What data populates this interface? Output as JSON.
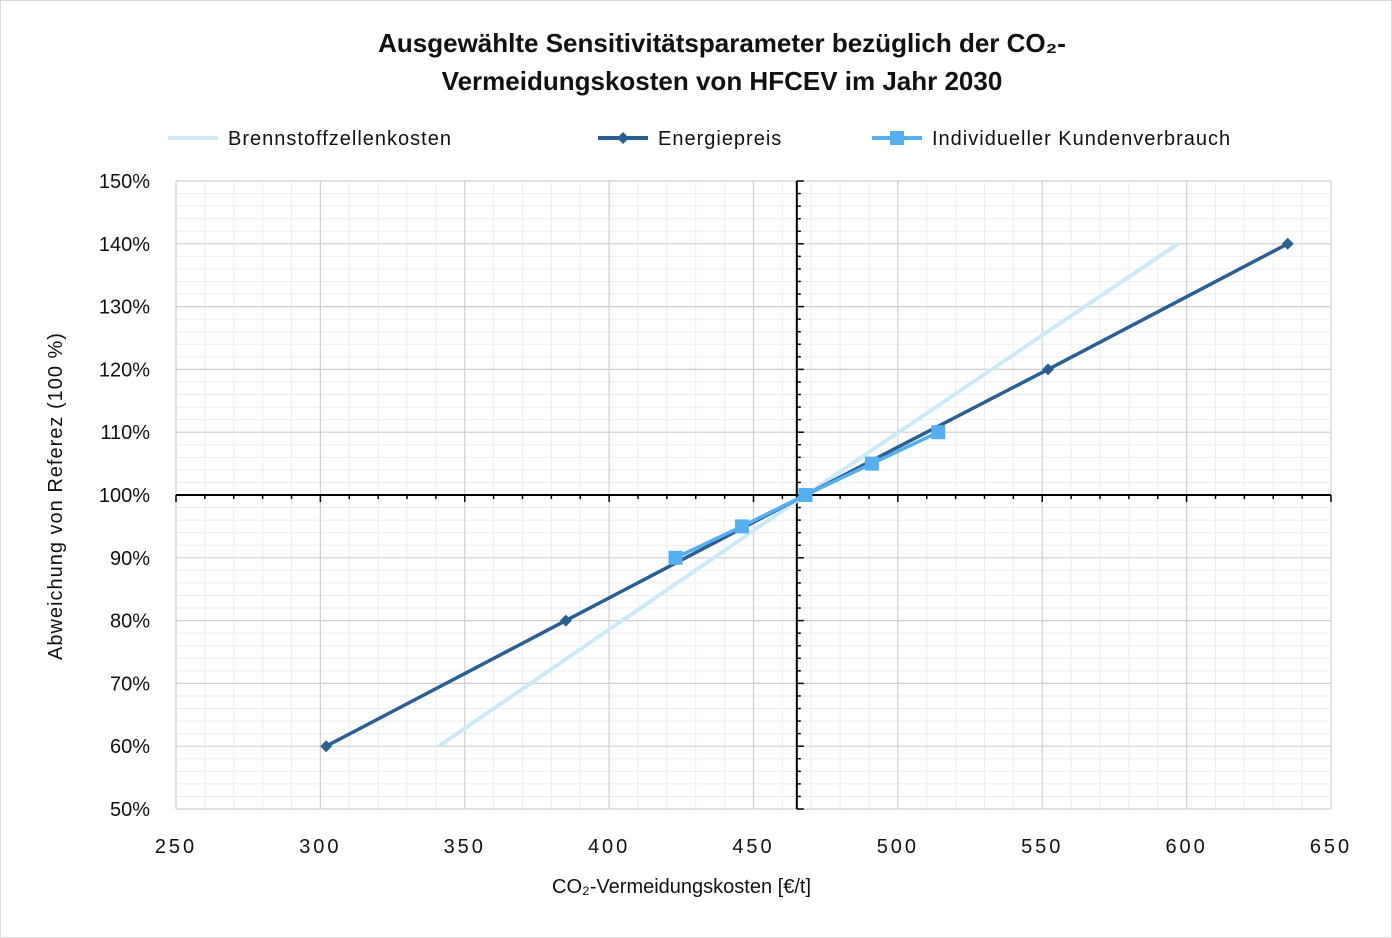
{
  "chart_data": {
    "type": "line",
    "title_line1": "Ausgewählte Sensitivitätsparameter bezüglich der CO₂-",
    "title_line2": "Vermeidungskosten von HFCEV im Jahr 2030",
    "xlabel": "CO₂-Vermeidungskosten [€/t]",
    "ylabel": "Abweichung von Referez (100 %)",
    "xlim": [
      250,
      650
    ],
    "ylim": [
      50,
      150
    ],
    "x_ticks": [
      250,
      300,
      350,
      400,
      450,
      500,
      550,
      600,
      650
    ],
    "y_ticks": [
      50,
      60,
      70,
      80,
      90,
      100,
      110,
      120,
      130,
      140,
      150
    ],
    "y_tick_labels": [
      "50%",
      "60%",
      "70%",
      "80%",
      "90%",
      "100%",
      "110%",
      "120%",
      "130%",
      "140%",
      "150%"
    ],
    "reference_lines": {
      "x": 465,
      "y": 100
    },
    "grid": true,
    "legend_position": "top",
    "series": [
      {
        "name": "Brennstoffzellenkosten",
        "color": "#cce9f5",
        "marker": "none",
        "points": [
          [
            341,
            60
          ],
          [
            468,
            100
          ],
          [
            597,
            140
          ]
        ]
      },
      {
        "name": "Energiepreis",
        "color": "#2a5f92",
        "marker": "diamond",
        "points": [
          [
            302,
            60
          ],
          [
            385,
            80
          ],
          [
            468,
            100
          ],
          [
            552,
            120
          ],
          [
            635,
            140
          ]
        ]
      },
      {
        "name": "Individueller Kundenverbrauch",
        "color": "#55aef0",
        "marker": "square",
        "points": [
          [
            423,
            90
          ],
          [
            446,
            95
          ],
          [
            468,
            100
          ],
          [
            491,
            105
          ],
          [
            514,
            110
          ]
        ]
      }
    ]
  }
}
